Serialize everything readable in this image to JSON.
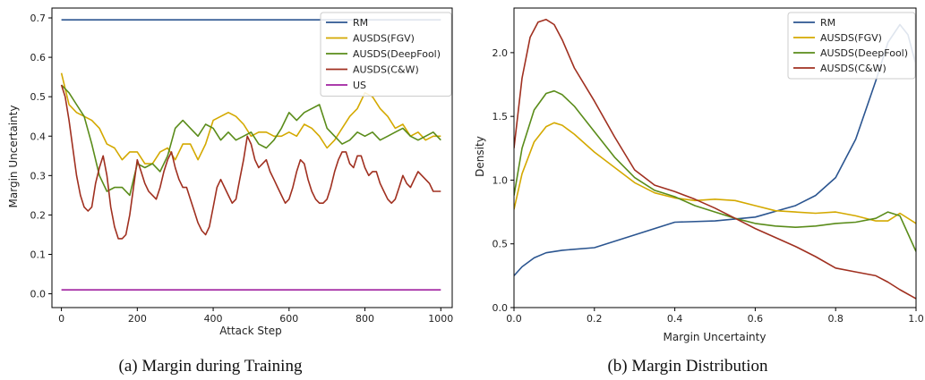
{
  "chart_data": [
    {
      "type": "line",
      "caption": "(a)  Margin during Training",
      "xlabel": "Attack Step",
      "ylabel": "Margin Uncertainty",
      "xlim": [
        -25,
        1030
      ],
      "ylim": [
        -0.035,
        0.725
      ],
      "xticks": [
        0,
        200,
        400,
        600,
        800,
        1000
      ],
      "yticks": [
        0.0,
        0.1,
        0.2,
        0.3,
        0.4,
        0.5,
        0.6,
        0.7
      ],
      "xtick_labels": [
        "0",
        "200",
        "400",
        "600",
        "800",
        "1000"
      ],
      "ytick_labels": [
        "0.0",
        "0.1",
        "0.2",
        "0.3",
        "0.4",
        "0.5",
        "0.6",
        "0.7"
      ],
      "grid": false,
      "legend": "top-right",
      "series": [
        {
          "name": "RM",
          "color": "#2b5590",
          "x": [
            0,
            1000
          ],
          "y": [
            0.695,
            0.695
          ]
        },
        {
          "name": "AUSDS(FGV)",
          "color": "#d4a900",
          "x": [
            0,
            20,
            40,
            60,
            80,
            100,
            120,
            140,
            160,
            180,
            200,
            220,
            240,
            260,
            280,
            300,
            320,
            340,
            360,
            380,
            400,
            420,
            440,
            460,
            480,
            500,
            520,
            540,
            560,
            580,
            600,
            620,
            640,
            660,
            680,
            700,
            720,
            740,
            760,
            780,
            800,
            820,
            840,
            860,
            880,
            900,
            920,
            940,
            960,
            980,
            1000
          ],
          "y": [
            0.56,
            0.48,
            0.46,
            0.45,
            0.44,
            0.42,
            0.38,
            0.37,
            0.34,
            0.36,
            0.36,
            0.33,
            0.33,
            0.36,
            0.37,
            0.34,
            0.38,
            0.38,
            0.34,
            0.38,
            0.44,
            0.45,
            0.46,
            0.45,
            0.43,
            0.4,
            0.41,
            0.41,
            0.4,
            0.4,
            0.41,
            0.4,
            0.43,
            0.42,
            0.4,
            0.37,
            0.39,
            0.42,
            0.45,
            0.47,
            0.51,
            0.5,
            0.47,
            0.45,
            0.42,
            0.43,
            0.4,
            0.41,
            0.39,
            0.4,
            0.4
          ]
        },
        {
          "name": "AUSDS(DeepFool)",
          "color": "#5a8c1a",
          "x": [
            0,
            20,
            40,
            60,
            80,
            100,
            120,
            140,
            160,
            180,
            200,
            220,
            240,
            260,
            280,
            300,
            320,
            340,
            360,
            380,
            400,
            420,
            440,
            460,
            480,
            500,
            520,
            540,
            560,
            580,
            600,
            620,
            640,
            660,
            680,
            700,
            720,
            740,
            760,
            780,
            800,
            820,
            840,
            860,
            880,
            900,
            920,
            940,
            960,
            980,
            1000
          ],
          "y": [
            0.53,
            0.51,
            0.48,
            0.45,
            0.38,
            0.3,
            0.26,
            0.27,
            0.27,
            0.25,
            0.33,
            0.32,
            0.33,
            0.31,
            0.35,
            0.42,
            0.44,
            0.42,
            0.4,
            0.43,
            0.42,
            0.39,
            0.41,
            0.39,
            0.4,
            0.41,
            0.38,
            0.37,
            0.39,
            0.42,
            0.46,
            0.44,
            0.46,
            0.47,
            0.48,
            0.42,
            0.4,
            0.38,
            0.39,
            0.41,
            0.4,
            0.41,
            0.39,
            0.4,
            0.41,
            0.42,
            0.4,
            0.39,
            0.4,
            0.41,
            0.39
          ]
        },
        {
          "name": "AUSDS(C&W)",
          "color": "#a03020",
          "x": [
            0,
            10,
            20,
            30,
            40,
            50,
            60,
            70,
            80,
            90,
            100,
            110,
            120,
            130,
            140,
            150,
            160,
            170,
            180,
            190,
            200,
            210,
            220,
            230,
            240,
            250,
            260,
            270,
            280,
            290,
            300,
            310,
            320,
            330,
            340,
            350,
            360,
            370,
            380,
            390,
            400,
            410,
            420,
            430,
            440,
            450,
            460,
            470,
            480,
            490,
            500,
            510,
            520,
            530,
            540,
            550,
            560,
            570,
            580,
            590,
            600,
            610,
            620,
            630,
            640,
            650,
            660,
            670,
            680,
            690,
            700,
            710,
            720,
            730,
            740,
            750,
            760,
            770,
            780,
            790,
            800,
            810,
            820,
            830,
            840,
            850,
            860,
            870,
            880,
            890,
            900,
            910,
            920,
            930,
            940,
            950,
            960,
            970,
            980,
            990,
            1000
          ],
          "y": [
            0.53,
            0.5,
            0.44,
            0.37,
            0.3,
            0.25,
            0.22,
            0.21,
            0.22,
            0.28,
            0.32,
            0.35,
            0.3,
            0.22,
            0.17,
            0.14,
            0.14,
            0.15,
            0.2,
            0.27,
            0.34,
            0.31,
            0.28,
            0.26,
            0.25,
            0.24,
            0.27,
            0.31,
            0.34,
            0.36,
            0.32,
            0.29,
            0.27,
            0.27,
            0.24,
            0.21,
            0.18,
            0.16,
            0.15,
            0.17,
            0.22,
            0.27,
            0.29,
            0.27,
            0.25,
            0.23,
            0.24,
            0.29,
            0.34,
            0.4,
            0.38,
            0.34,
            0.32,
            0.33,
            0.34,
            0.31,
            0.29,
            0.27,
            0.25,
            0.23,
            0.24,
            0.27,
            0.31,
            0.34,
            0.33,
            0.29,
            0.26,
            0.24,
            0.23,
            0.23,
            0.24,
            0.27,
            0.31,
            0.34,
            0.36,
            0.36,
            0.33,
            0.32,
            0.35,
            0.35,
            0.32,
            0.3,
            0.31,
            0.31,
            0.28,
            0.26,
            0.24,
            0.23,
            0.24,
            0.27,
            0.3,
            0.28,
            0.27,
            0.29,
            0.31,
            0.3,
            0.29,
            0.28,
            0.26,
            0.26,
            0.26
          ]
        },
        {
          "name": "US",
          "color": "#a020a0",
          "x": [
            0,
            1000
          ],
          "y": [
            0.01,
            0.01
          ]
        }
      ]
    },
    {
      "type": "line",
      "caption": "(b)  Margin Distribution",
      "xlabel": "Margin Uncertainty",
      "ylabel": "Density",
      "xlim": [
        0.0,
        1.0
      ],
      "ylim": [
        0.0,
        2.35
      ],
      "xticks": [
        0.0,
        0.2,
        0.4,
        0.6,
        0.8,
        1.0
      ],
      "yticks": [
        0.0,
        0.5,
        1.0,
        1.5,
        2.0
      ],
      "xtick_labels": [
        "0.0",
        "0.2",
        "0.4",
        "0.6",
        "0.8",
        "1.0"
      ],
      "ytick_labels": [
        "0.0",
        "0.5",
        "1.0",
        "1.5",
        "2.0"
      ],
      "grid": false,
      "legend": "top-right",
      "series": [
        {
          "name": "RM",
          "color": "#2b5590",
          "x": [
            0.0,
            0.02,
            0.05,
            0.08,
            0.12,
            0.2,
            0.3,
            0.4,
            0.5,
            0.6,
            0.7,
            0.75,
            0.8,
            0.85,
            0.9,
            0.93,
            0.96,
            0.98,
            1.0
          ],
          "y": [
            0.25,
            0.32,
            0.39,
            0.43,
            0.45,
            0.47,
            0.57,
            0.67,
            0.68,
            0.71,
            0.8,
            0.88,
            1.02,
            1.32,
            1.78,
            2.08,
            2.22,
            2.14,
            1.9
          ]
        },
        {
          "name": "AUSDS(FGV)",
          "color": "#d4a900",
          "x": [
            0.0,
            0.02,
            0.05,
            0.08,
            0.1,
            0.12,
            0.15,
            0.2,
            0.25,
            0.3,
            0.35,
            0.4,
            0.45,
            0.5,
            0.55,
            0.6,
            0.65,
            0.7,
            0.75,
            0.8,
            0.85,
            0.9,
            0.93,
            0.96,
            1.0
          ],
          "y": [
            0.77,
            1.05,
            1.3,
            1.42,
            1.45,
            1.43,
            1.36,
            1.22,
            1.1,
            0.98,
            0.9,
            0.86,
            0.84,
            0.85,
            0.84,
            0.8,
            0.76,
            0.75,
            0.74,
            0.75,
            0.72,
            0.68,
            0.68,
            0.74,
            0.66
          ]
        },
        {
          "name": "AUSDS(DeepFool)",
          "color": "#5a8c1a",
          "x": [
            0.0,
            0.02,
            0.05,
            0.08,
            0.1,
            0.12,
            0.15,
            0.2,
            0.25,
            0.3,
            0.35,
            0.4,
            0.45,
            0.5,
            0.55,
            0.6,
            0.65,
            0.7,
            0.75,
            0.8,
            0.85,
            0.9,
            0.93,
            0.96,
            1.0
          ],
          "y": [
            0.88,
            1.25,
            1.55,
            1.68,
            1.7,
            1.67,
            1.58,
            1.38,
            1.18,
            1.02,
            0.92,
            0.87,
            0.8,
            0.75,
            0.7,
            0.66,
            0.64,
            0.63,
            0.64,
            0.66,
            0.67,
            0.7,
            0.75,
            0.72,
            0.44
          ]
        },
        {
          "name": "AUSDS(C&W)",
          "color": "#a03020",
          "x": [
            0.0,
            0.02,
            0.04,
            0.06,
            0.08,
            0.1,
            0.12,
            0.15,
            0.2,
            0.25,
            0.3,
            0.35,
            0.4,
            0.45,
            0.5,
            0.55,
            0.6,
            0.65,
            0.7,
            0.75,
            0.8,
            0.85,
            0.9,
            0.93,
            0.96,
            1.0
          ],
          "y": [
            1.25,
            1.8,
            2.12,
            2.24,
            2.26,
            2.22,
            2.1,
            1.88,
            1.62,
            1.34,
            1.08,
            0.96,
            0.91,
            0.85,
            0.78,
            0.7,
            0.62,
            0.55,
            0.48,
            0.4,
            0.31,
            0.28,
            0.25,
            0.2,
            0.14,
            0.07
          ]
        }
      ]
    }
  ]
}
